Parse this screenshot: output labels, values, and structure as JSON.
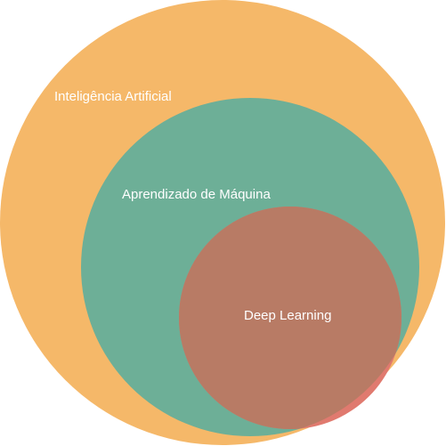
{
  "diagram": {
    "circles": [
      {
        "id": "ai",
        "label": "Inteligência Artificial",
        "color": "#F5B869"
      },
      {
        "id": "ml",
        "label": "Aprendizado de Máquina",
        "color": "#6DAF97"
      },
      {
        "id": "dl",
        "label": "Deep Learning",
        "color": "#B87B65"
      }
    ],
    "overlap_color": "#E07A6F"
  }
}
